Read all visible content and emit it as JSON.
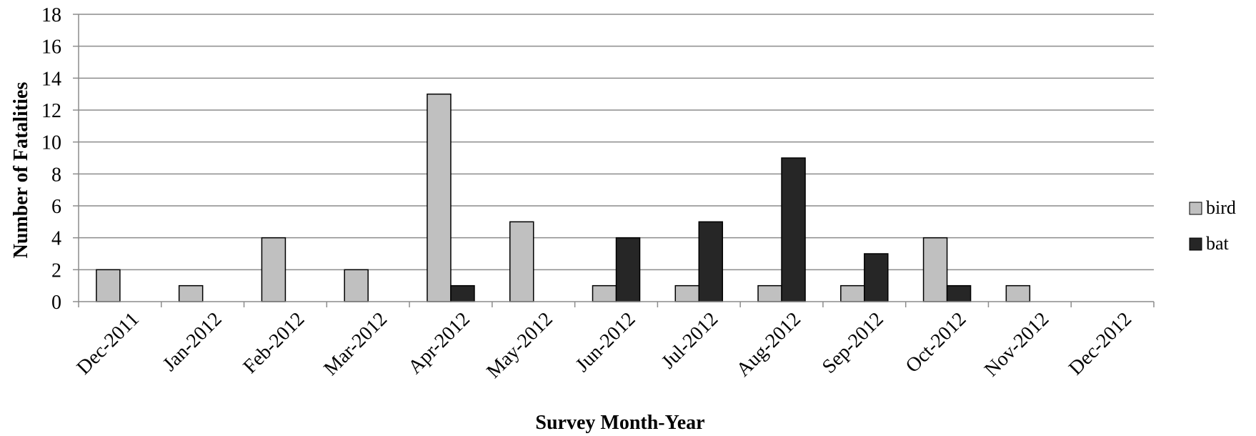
{
  "chart_data": {
    "type": "bar",
    "title": "",
    "xlabel": "Survey Month-Year",
    "ylabel": "Number of Fatalities",
    "ylim": [
      0,
      18
    ],
    "yticks": [
      "0",
      "2",
      "4",
      "6",
      "8",
      "10",
      "12",
      "14",
      "16",
      "18"
    ],
    "ytick_values": [
      0,
      2,
      4,
      6,
      8,
      10,
      12,
      14,
      16,
      18
    ],
    "grid": "horizontal",
    "legend_position": "right",
    "categories": [
      "Dec-2011",
      "Jan-2012",
      "Feb-2012",
      "Mar-2012",
      "Apr-2012",
      "May-2012",
      "Jun-2012",
      "Jul-2012",
      "Aug-2012",
      "Sep-2012",
      "Oct-2012",
      "Nov-2012",
      "Dec-2012"
    ],
    "series": [
      {
        "name": "bird",
        "color": "#c0c0c0",
        "values": [
          2,
          1,
          4,
          2,
          13,
          5,
          1,
          1,
          1,
          1,
          4,
          1,
          0
        ]
      },
      {
        "name": "bat",
        "color": "#262626",
        "values": [
          0,
          0,
          0,
          0,
          1,
          0,
          4,
          5,
          9,
          3,
          1,
          0,
          0
        ]
      }
    ]
  }
}
